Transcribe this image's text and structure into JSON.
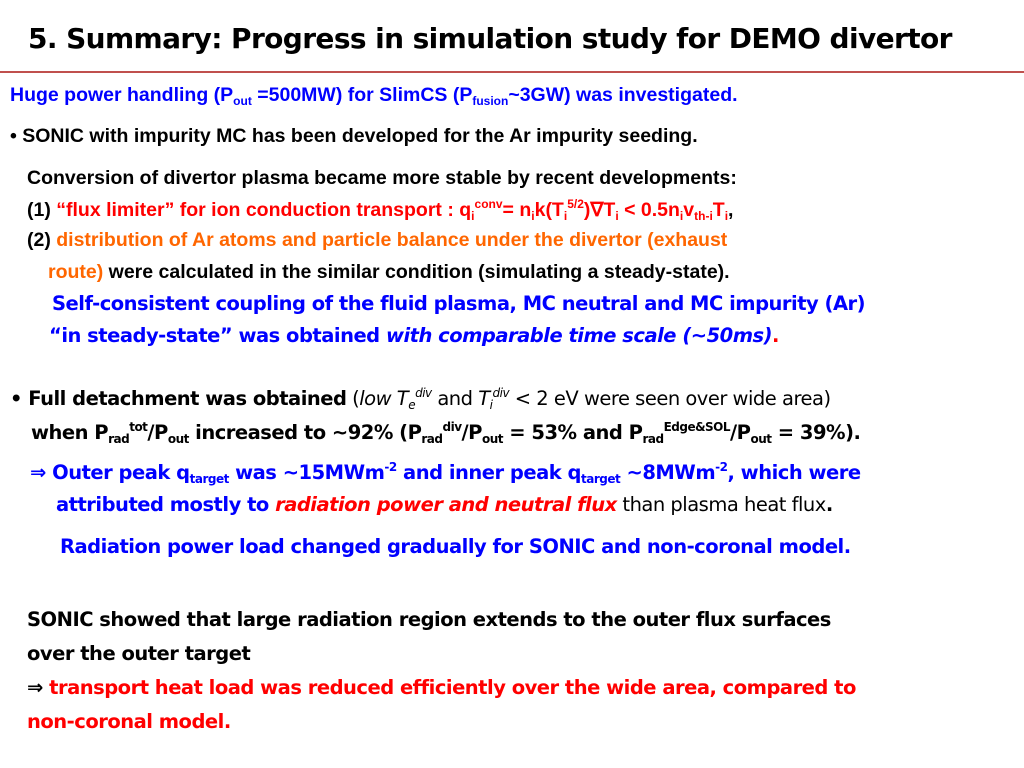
{
  "title": "5. Summary: Progress in simulation study for DEMO divertor",
  "colors": {
    "accent_rule": "#c0504d",
    "blue": "#0000ff",
    "red": "#ff0000",
    "orange": "#ff6600"
  },
  "l1": {
    "a": "Huge power handling (P",
    "sub1": "out",
    "b": " =500MW) for SlimCS (P",
    "sub2": "fusion",
    "c": "~3GW) was investigated."
  },
  "l2": "• SONIC with impurity MC has been developed for the Ar impurity seeding.",
  "l3": "Conversion of divertor plasma became more stable by recent developments:",
  "l4": {
    "num": "(1) ",
    "a": "“flux limiter” for ion conduction transport : q",
    "sub1": "i",
    "sup1": "conv",
    "b": "= n",
    "sub2": "i",
    "c": "k(T",
    "sub3": "i",
    "sup2": "5/2",
    "d": ")∇T",
    "sub4": "i",
    "e": " < 0.5n",
    "sub5": "i",
    "f": "v",
    "sub6": "th-i",
    "g": "T",
    "sub7": "i",
    "end": ","
  },
  "l5": {
    "num": "(2) ",
    "text": "distribution of Ar atoms and particle balance under the divertor (exhaust"
  },
  "l6": {
    "red": "route)",
    "rest": " were calculated in the similar condition (simulating a steady-state)."
  },
  "l7": "Self-consistent coupling of the fluid plasma, MC neutral and MC impurity (Ar)",
  "l8": {
    "a": "“in steady-state” was obtained ",
    "b": "with comparable time scale (~50ms)",
    "c": "."
  },
  "l9": {
    "a": "• Full detachment was obtained",
    "b": " (",
    "c": "low T",
    "sub1": "e",
    "sup1": "div",
    "d": " and ",
    "e": "T",
    "sub2": "i",
    "sup2": "div",
    "f": " < 2 eV were seen over wide area)"
  },
  "l10": {
    "a": "when P",
    "sub1": "rad",
    "sup1": "tot",
    "b": "/P",
    "sub2": "out",
    "c": " increased to ~92% (P",
    "sub3": "rad",
    "sup2": "div",
    "d": "/P",
    "sub4": "out",
    "e": " = 53% and P",
    "sub5": "rad",
    "sup3": "Edge&SOL",
    "f": "/P",
    "sub6": "out",
    "g": " = 39%)."
  },
  "l11": {
    "arrow": "⇒ ",
    "a": "Outer peak q",
    "sub1": "target",
    "b": " was ~15MWm",
    "sup1": "-2",
    "c": " and inner peak q",
    "sub2": "target",
    "d": "  ~8MWm",
    "sup2": "-2",
    "e": ", which were"
  },
  "l12": {
    "a": "attributed mostly to ",
    "b": "radiation power and neutral flux",
    "c": " than plasma heat flux",
    "d": "."
  },
  "l13": "Radiation power load changed gradually for SONIC and non-coronal model.",
  "l14": "SONIC showed that large radiation region extends to the outer flux surfaces",
  "l15": "over the outer target",
  "l16": {
    "arrow": "⇒ ",
    "text": "transport heat load was reduced efficiently over the wide area, compared to"
  },
  "l17": "non-coronal model."
}
